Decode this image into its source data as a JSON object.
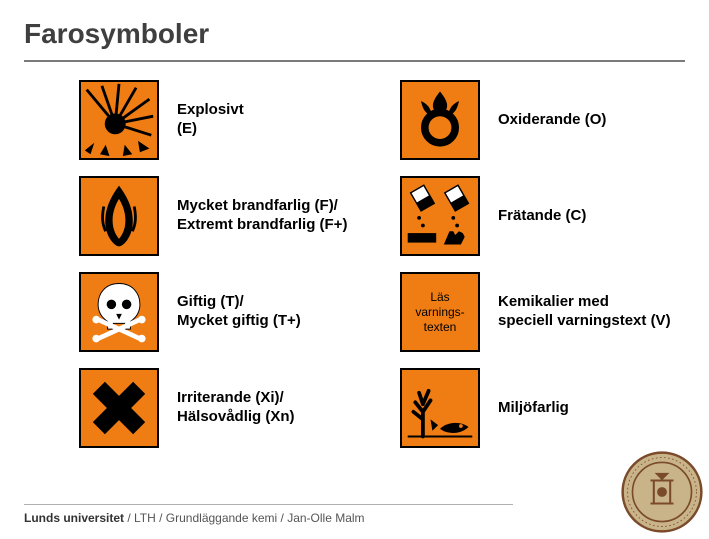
{
  "title": "Farosymboler",
  "colors": {
    "symbol_bg": "#f07d13",
    "symbol_border": "#000000",
    "ink": "#000000",
    "white": "#ffffff",
    "seal_ring": "#7a4a2a",
    "seal_inner": "#c9b48a"
  },
  "symbols": [
    {
      "id": "explosive",
      "label": "Explosivt\n(E)"
    },
    {
      "id": "oxidizing",
      "label": "Oxiderande (O)"
    },
    {
      "id": "flammable",
      "label": "Mycket brandfarlig (F)/\nExtremt brandfarlig (F+)"
    },
    {
      "id": "corrosive",
      "label": "Frätande (C)"
    },
    {
      "id": "toxic",
      "label": "Giftig (T)/\nMycket giftig (T+)"
    },
    {
      "id": "warningtext",
      "label": "Kemikalier med\nspeciell varningstext (V)"
    },
    {
      "id": "irritant",
      "label": "Irriterande (Xi)/\nHälsovådlig (Xn)"
    },
    {
      "id": "envhazard",
      "label": "Miljöfarlig"
    }
  ],
  "warning_box_lines": [
    "Läs",
    "varnings-",
    "texten"
  ],
  "footer": {
    "strong": "Lunds universitet",
    "rest": " / LTH / Grundläggande kemi / Jan-Olle Malm"
  }
}
